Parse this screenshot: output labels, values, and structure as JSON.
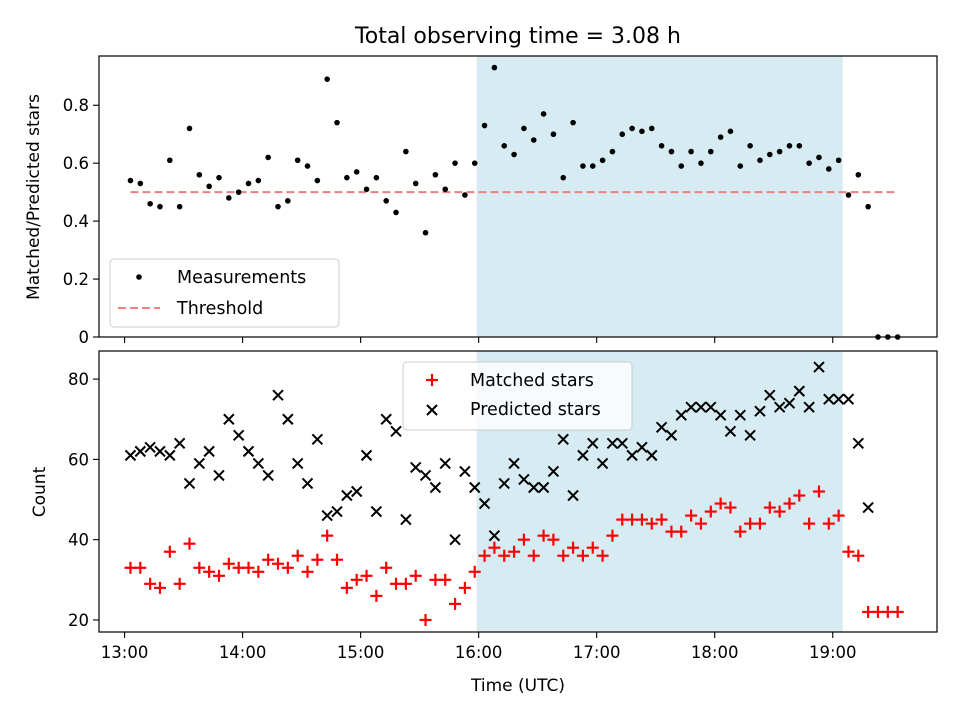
{
  "figure": {
    "title": "Total observing time = 3.08 h",
    "xlabel": "Time (UTC)",
    "xticks": [
      "13:00",
      "14:00",
      "15:00",
      "16:00",
      "17:00",
      "18:00",
      "19:00"
    ]
  },
  "colors": {
    "measurements": "#000000",
    "threshold": "#f08080",
    "matched": "#ff0000",
    "predicted": "#000000",
    "highlight_span": "#add8e6"
  },
  "chart_data": [
    {
      "type": "scatter",
      "ylabel": "Matched/Predicted stars",
      "xlim": [
        "12:47",
        "19:53"
      ],
      "ylim": [
        0,
        0.97
      ],
      "yticks": [
        0.0,
        0.2,
        0.4,
        0.6,
        0.8
      ],
      "legend": {
        "position": "bottom-left",
        "entries": [
          "Measurements",
          "Threshold"
        ]
      },
      "highlight_span": {
        "x": [
          "15:59",
          "19:05"
        ],
        "color": "lightblue"
      },
      "threshold": {
        "name": "Threshold",
        "y": 0.5,
        "x": [
          "13:03",
          "19:32"
        ],
        "style": "dashed"
      },
      "series": [
        {
          "name": "Measurements",
          "x": [
            "13:03",
            "13:08",
            "13:13",
            "13:18",
            "13:23",
            "13:28",
            "13:33",
            "13:38",
            "13:43",
            "13:48",
            "13:53",
            "13:58",
            "14:03",
            "14:08",
            "14:13",
            "14:18",
            "14:23",
            "14:28",
            "14:33",
            "14:38",
            "14:43",
            "14:48",
            "14:53",
            "14:58",
            "15:03",
            "15:08",
            "15:13",
            "15:18",
            "15:23",
            "15:28",
            "15:33",
            "15:38",
            "15:43",
            "15:48",
            "15:53",
            "15:58",
            "16:03",
            "16:08",
            "16:13",
            "16:18",
            "16:23",
            "16:28",
            "16:33",
            "16:38",
            "16:43",
            "16:48",
            "16:53",
            "16:58",
            "17:03",
            "17:08",
            "17:13",
            "17:18",
            "17:23",
            "17:28",
            "17:33",
            "17:38",
            "17:43",
            "17:48",
            "17:53",
            "17:58",
            "18:03",
            "18:08",
            "18:13",
            "18:18",
            "18:23",
            "18:28",
            "18:33",
            "18:38",
            "18:43",
            "18:48",
            "18:53",
            "18:58",
            "19:03",
            "19:08",
            "19:13",
            "19:18",
            "19:23",
            "19:28",
            "19:33"
          ],
          "y": [
            0.54,
            0.53,
            0.46,
            0.45,
            0.61,
            0.45,
            0.72,
            0.56,
            0.52,
            0.55,
            0.48,
            0.5,
            0.53,
            0.54,
            0.62,
            0.45,
            0.47,
            0.61,
            0.59,
            0.54,
            0.89,
            0.74,
            0.55,
            0.57,
            0.51,
            0.55,
            0.47,
            0.43,
            0.64,
            0.53,
            0.36,
            0.56,
            0.51,
            0.6,
            0.49,
            0.6,
            0.73,
            0.93,
            0.66,
            0.63,
            0.72,
            0.68,
            0.77,
            0.7,
            0.55,
            0.74,
            0.59,
            0.59,
            0.61,
            0.64,
            0.7,
            0.72,
            0.71,
            0.72,
            0.66,
            0.64,
            0.59,
            0.64,
            0.6,
            0.64,
            0.69,
            0.71,
            0.59,
            0.66,
            0.61,
            0.63,
            0.64,
            0.66,
            0.66,
            0.6,
            0.62,
            0.58,
            0.61,
            0.49,
            0.56,
            0.45,
            0.0,
            0.0,
            0.0
          ]
        }
      ]
    },
    {
      "type": "scatter",
      "ylabel": "Count",
      "xlim": [
        "12:47",
        "19:53"
      ],
      "ylim": [
        17,
        87
      ],
      "yticks": [
        20,
        40,
        60,
        80
      ],
      "legend": {
        "position": "top-center",
        "entries": [
          "Matched stars",
          "Predicted stars"
        ]
      },
      "highlight_span": {
        "x": [
          "15:59",
          "19:05"
        ],
        "color": "lightblue"
      },
      "series": [
        {
          "name": "Matched stars",
          "marker": "+",
          "x": [
            "13:03",
            "13:08",
            "13:13",
            "13:18",
            "13:23",
            "13:28",
            "13:33",
            "13:38",
            "13:43",
            "13:48",
            "13:53",
            "13:58",
            "14:03",
            "14:08",
            "14:13",
            "14:18",
            "14:23",
            "14:28",
            "14:33",
            "14:38",
            "14:43",
            "14:48",
            "14:53",
            "14:58",
            "15:03",
            "15:08",
            "15:13",
            "15:18",
            "15:23",
            "15:28",
            "15:33",
            "15:38",
            "15:43",
            "15:48",
            "15:53",
            "15:58",
            "16:03",
            "16:08",
            "16:13",
            "16:18",
            "16:23",
            "16:28",
            "16:33",
            "16:38",
            "16:43",
            "16:48",
            "16:53",
            "16:58",
            "17:03",
            "17:08",
            "17:13",
            "17:18",
            "17:23",
            "17:28",
            "17:33",
            "17:38",
            "17:43",
            "17:48",
            "17:53",
            "17:58",
            "18:03",
            "18:08",
            "18:13",
            "18:18",
            "18:23",
            "18:28",
            "18:33",
            "18:38",
            "18:43",
            "18:48",
            "18:53",
            "18:58",
            "19:03",
            "19:08",
            "19:13",
            "19:18",
            "19:23",
            "19:28",
            "19:33"
          ],
          "y": [
            33,
            33,
            29,
            28,
            37,
            29,
            39,
            33,
            32,
            31,
            34,
            33,
            33,
            32,
            35,
            34,
            33,
            36,
            32,
            35,
            41,
            35,
            28,
            30,
            31,
            26,
            33,
            29,
            29,
            31,
            20,
            30,
            30,
            24,
            28,
            32,
            36,
            38,
            36,
            37,
            40,
            36,
            41,
            40,
            36,
            38,
            36,
            38,
            36,
            41,
            45,
            45,
            45,
            44,
            45,
            42,
            42,
            46,
            44,
            47,
            49,
            48,
            42,
            44,
            44,
            48,
            47,
            49,
            51,
            44,
            52,
            44,
            46,
            37,
            36,
            22,
            22,
            22,
            22
          ]
        },
        {
          "name": "Predicted stars",
          "marker": "x",
          "x": [
            "13:03",
            "13:08",
            "13:13",
            "13:18",
            "13:23",
            "13:28",
            "13:33",
            "13:38",
            "13:43",
            "13:48",
            "13:53",
            "13:58",
            "14:03",
            "14:08",
            "14:13",
            "14:18",
            "14:23",
            "14:28",
            "14:33",
            "14:38",
            "14:43",
            "14:48",
            "14:53",
            "14:58",
            "15:03",
            "15:08",
            "15:13",
            "15:18",
            "15:23",
            "15:28",
            "15:33",
            "15:38",
            "15:43",
            "15:48",
            "15:53",
            "15:58",
            "16:03",
            "16:08",
            "16:13",
            "16:18",
            "16:23",
            "16:28",
            "16:33",
            "16:38",
            "16:43",
            "16:48",
            "16:53",
            "16:58",
            "17:03",
            "17:08",
            "17:13",
            "17:18",
            "17:23",
            "17:28",
            "17:33",
            "17:38",
            "17:43",
            "17:48",
            "17:53",
            "17:58",
            "18:03",
            "18:08",
            "18:13",
            "18:18",
            "18:23",
            "18:28",
            "18:33",
            "18:38",
            "18:43",
            "18:48",
            "18:53",
            "18:58",
            "19:03",
            "19:08",
            "19:13",
            "19:18"
          ],
          "y": [
            61,
            62,
            63,
            62,
            61,
            64,
            54,
            59,
            62,
            56,
            70,
            66,
            62,
            59,
            56,
            76,
            70,
            59,
            54,
            65,
            46,
            47,
            51,
            52,
            61,
            47,
            70,
            67,
            45,
            58,
            56,
            53,
            59,
            40,
            57,
            53,
            49,
            41,
            54,
            59,
            55,
            53,
            53,
            57,
            65,
            51,
            61,
            64,
            59,
            64,
            64,
            61,
            63,
            61,
            68,
            66,
            71,
            73,
            73,
            73,
            71,
            67,
            71,
            66,
            72,
            76,
            73,
            74,
            77,
            73,
            83,
            75,
            75,
            75,
            64,
            48
          ]
        }
      ]
    }
  ]
}
